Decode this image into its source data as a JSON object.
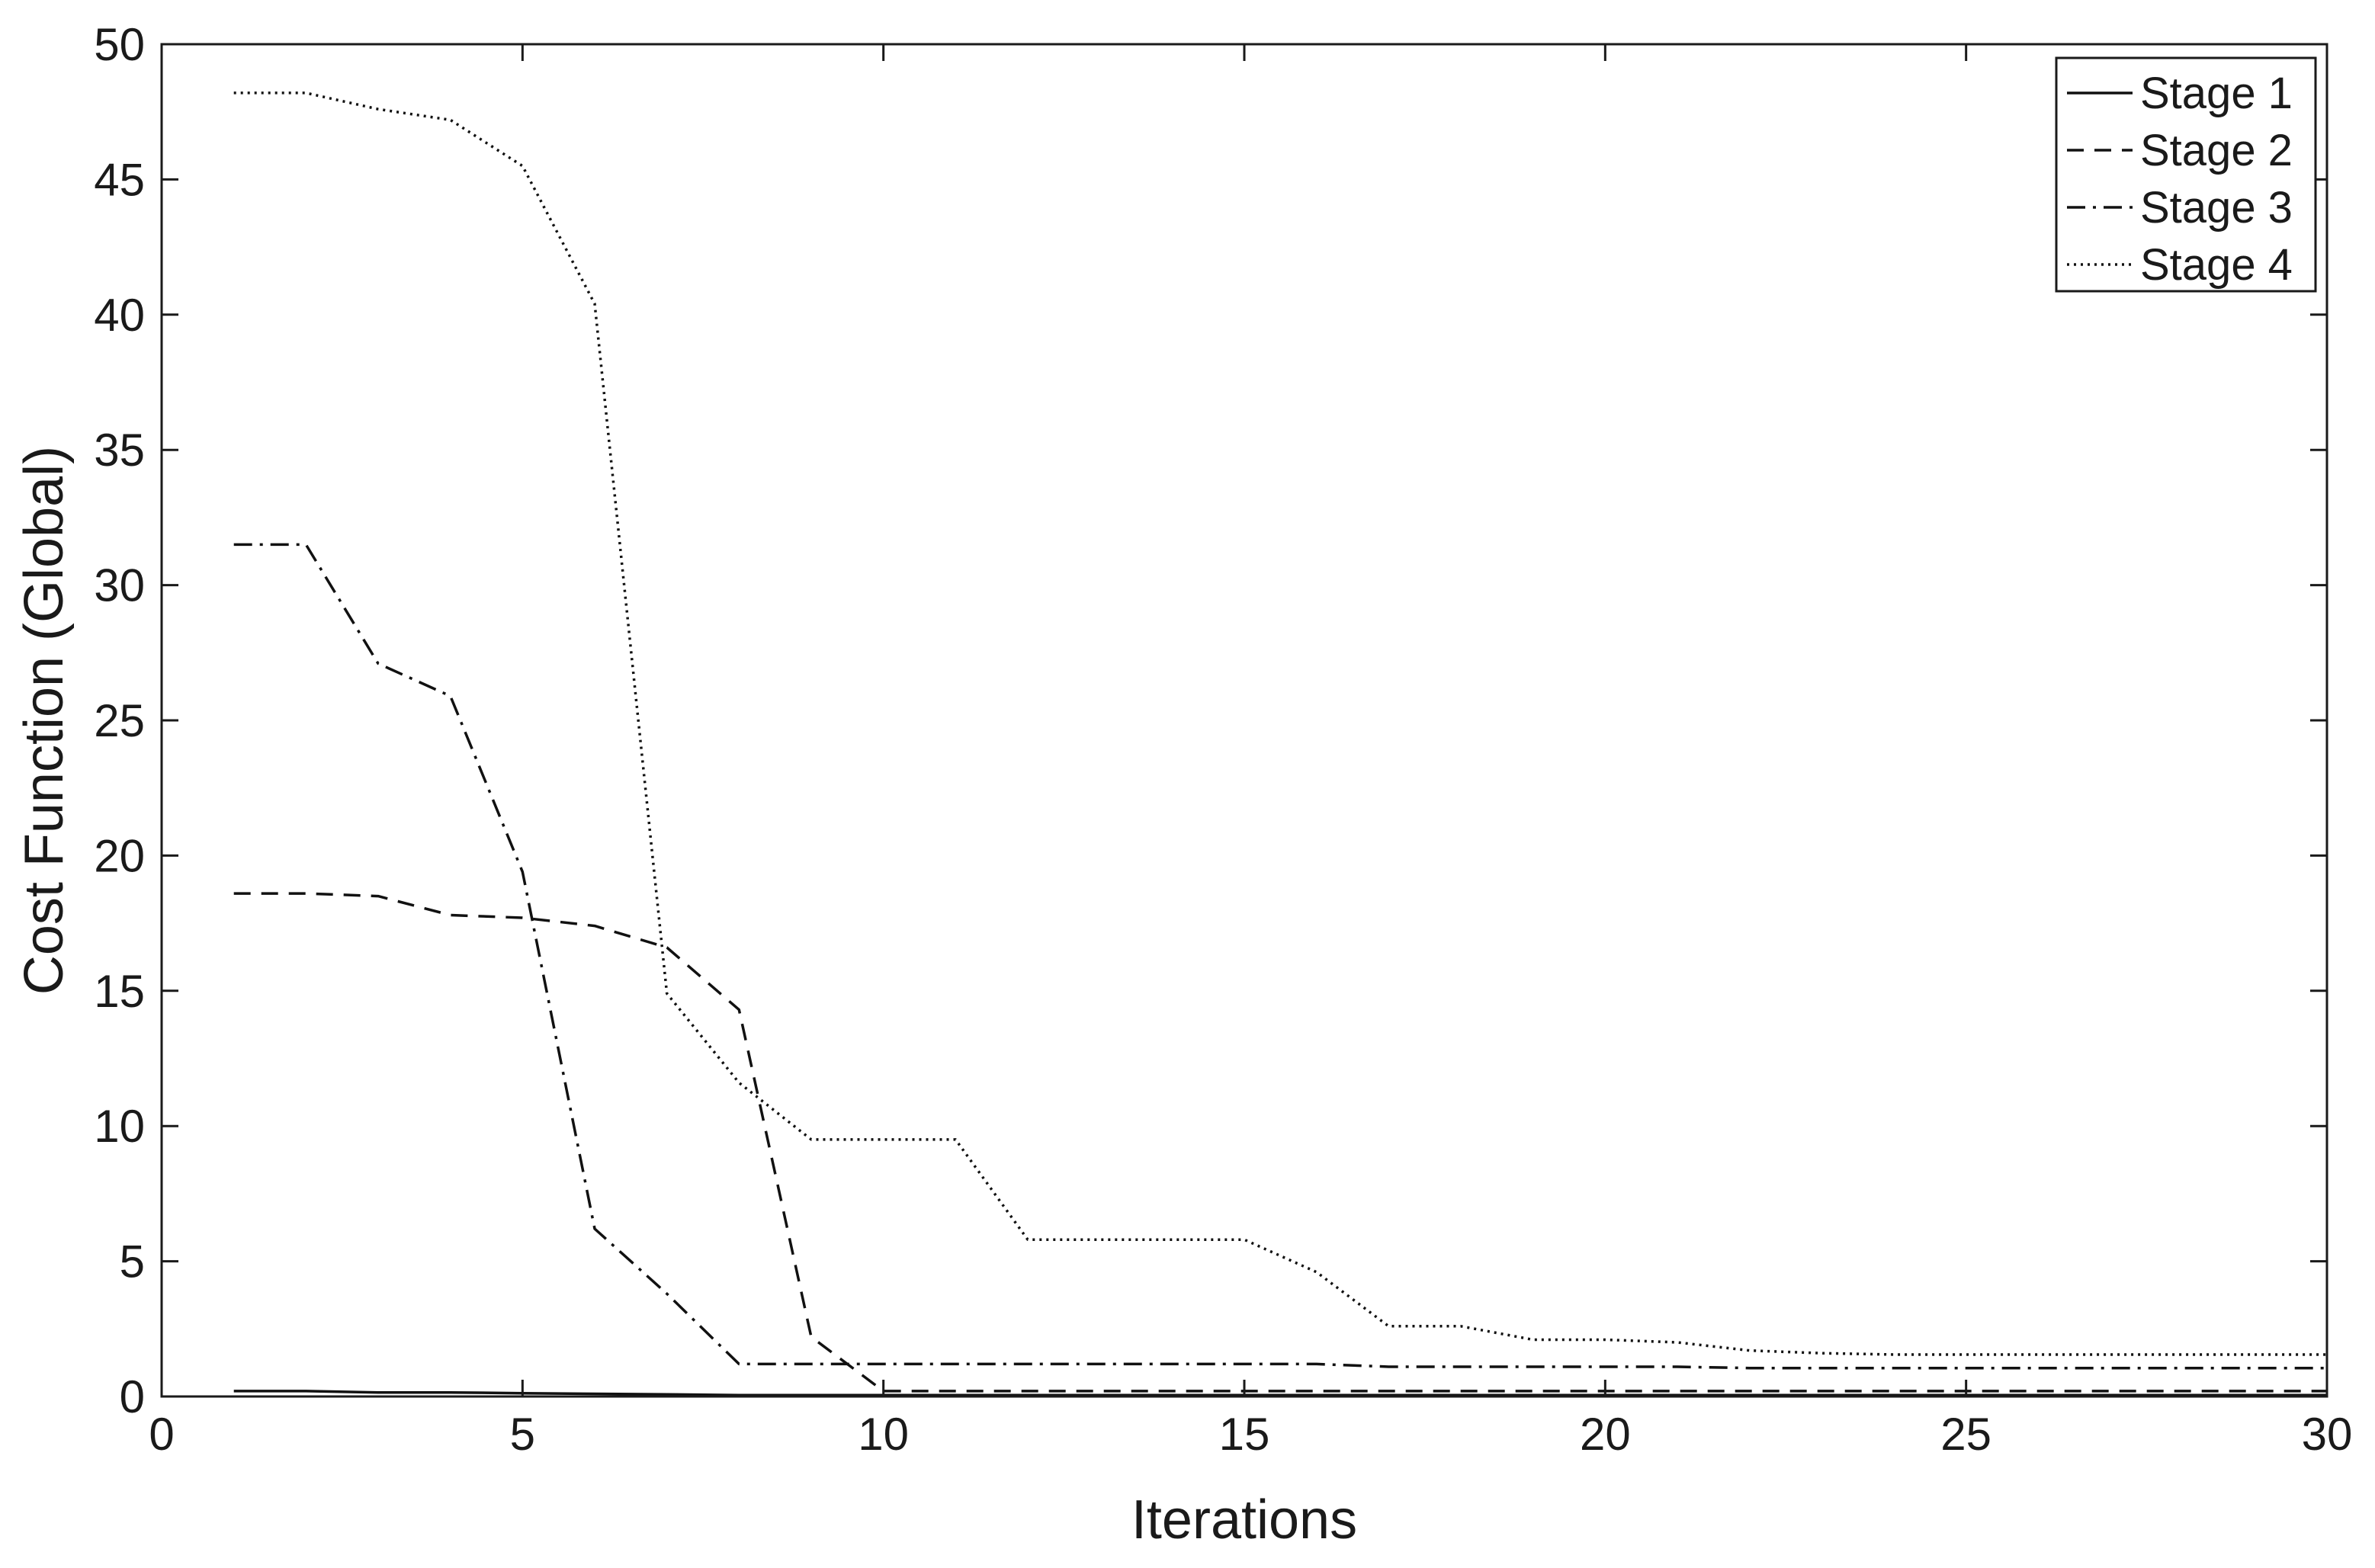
{
  "chart_data": {
    "type": "line",
    "title": "",
    "xlabel": "Iterations",
    "ylabel": "Cost Function (Global)",
    "xlim": [
      0,
      30
    ],
    "ylim": [
      0,
      50
    ],
    "xticks": [
      "0",
      "5",
      "10",
      "15",
      "20",
      "25",
      "30"
    ],
    "yticks": [
      "0",
      "5",
      "10",
      "15",
      "20",
      "25",
      "30",
      "35",
      "40",
      "45",
      "50"
    ],
    "grid": false,
    "legend_position": "top-right",
    "x": [
      1,
      2,
      3,
      4,
      5,
      6,
      7,
      8,
      9,
      10,
      11,
      12,
      13,
      14,
      15,
      16,
      17,
      18,
      19,
      20,
      21,
      22,
      23,
      24,
      25,
      26,
      27,
      28,
      29,
      30
    ],
    "series": [
      {
        "name": "Stage 1",
        "style": "solid",
        "values": [
          0.2,
          0.2,
          0.15,
          0.15,
          0.12,
          0.1,
          0.08,
          0.05,
          0.05,
          0.05,
          0.05,
          0.05,
          0.05,
          0.05,
          0.05,
          0.05,
          0.05,
          0.05,
          0.05,
          0.05,
          0.05,
          0.05,
          0.05,
          0.05,
          0.05,
          0.05,
          0.05,
          0.05,
          0.05,
          0.05
        ]
      },
      {
        "name": "Stage 2",
        "style": "dashed",
        "values": [
          18.6,
          18.6,
          18.5,
          17.8,
          17.7,
          17.4,
          16.6,
          14.3,
          2.2,
          0.2,
          0.2,
          0.2,
          0.2,
          0.2,
          0.2,
          0.2,
          0.2,
          0.2,
          0.2,
          0.2,
          0.2,
          0.2,
          0.2,
          0.2,
          0.2,
          0.2,
          0.2,
          0.2,
          0.2,
          0.2
        ]
      },
      {
        "name": "Stage 3",
        "style": "dashdot",
        "values": [
          31.5,
          31.5,
          27.1,
          25.9,
          19.4,
          6.2,
          3.8,
          1.2,
          1.2,
          1.2,
          1.2,
          1.2,
          1.2,
          1.2,
          1.2,
          1.2,
          1.1,
          1.1,
          1.1,
          1.1,
          1.1,
          1.05,
          1.05,
          1.05,
          1.05,
          1.05,
          1.05,
          1.05,
          1.05,
          1.05
        ]
      },
      {
        "name": "Stage 4",
        "style": "dotted",
        "values": [
          48.2,
          48.2,
          47.6,
          47.2,
          45.5,
          40.4,
          14.9,
          11.6,
          9.5,
          9.5,
          9.5,
          5.8,
          5.8,
          5.8,
          5.8,
          4.6,
          2.6,
          2.6,
          2.1,
          2.1,
          2.0,
          1.7,
          1.6,
          1.55,
          1.55,
          1.55,
          1.55,
          1.55,
          1.55,
          1.55
        ]
      }
    ]
  }
}
